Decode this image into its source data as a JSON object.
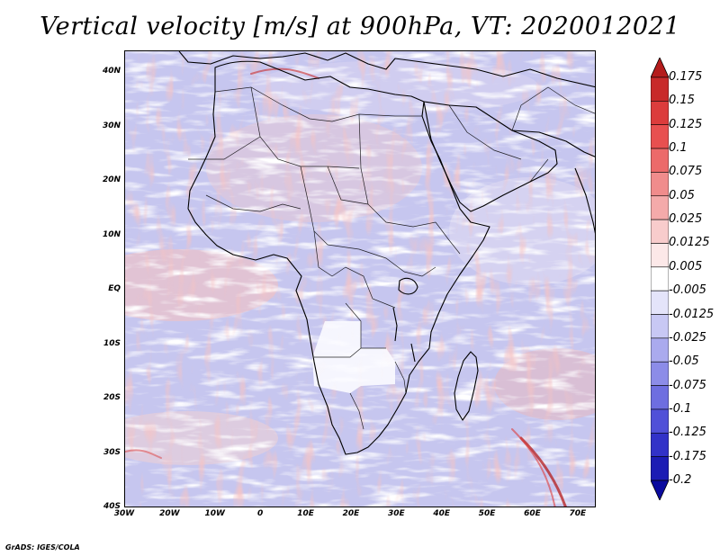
{
  "title": "Vertical velocity [m/s] at 900hPa, VT: 2020012021",
  "credit": "GrADS: IGES/COLA",
  "map": {
    "region": "Africa",
    "lat_labels": [
      "40N",
      "30N",
      "20N",
      "10N",
      "EQ",
      "10S",
      "20S",
      "30S",
      "40S"
    ],
    "lon_labels": [
      "30W",
      "20W",
      "10W",
      "0",
      "10E",
      "20E",
      "30E",
      "40E",
      "50E",
      "60E",
      "70E"
    ],
    "lat_range": [
      -40,
      44
    ],
    "lon_range": [
      -30,
      74
    ]
  },
  "colorbar": {
    "labels": [
      "0.175",
      "0.15",
      "0.125",
      "0.1",
      "0.075",
      "0.05",
      "0.025",
      "0.0125",
      "0.005",
      "-0.005",
      "-0.0125",
      "-0.025",
      "-0.05",
      "-0.075",
      "-0.1",
      "-0.125",
      "-0.175",
      "-0.2"
    ],
    "colors": [
      "#b41c1c",
      "#c82a2a",
      "#dc3c3c",
      "#e85050",
      "#ec6a6a",
      "#f08c8c",
      "#f4aaaa",
      "#f8cccc",
      "#fce8e8",
      "#ffffff",
      "#e4e4fa",
      "#c8c8f4",
      "#aaaaee",
      "#8c8ce8",
      "#6e6ee0",
      "#5050d8",
      "#3232c8",
      "#1c1cb4",
      "#0a0a9e"
    ]
  }
}
